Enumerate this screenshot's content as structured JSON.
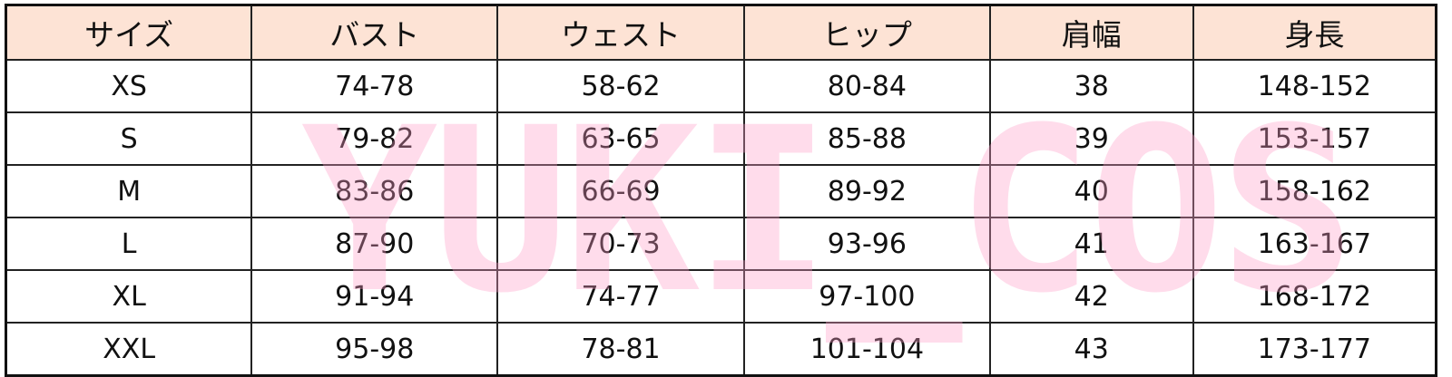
{
  "table": {
    "headers": [
      "サイズ",
      "バスト",
      "ウェスト",
      "ヒップ",
      "肩幅",
      "身長"
    ],
    "rows": [
      [
        "XS",
        "74-78",
        "58-62",
        "80-84",
        "38",
        "148-152"
      ],
      [
        "S",
        "79-82",
        "63-65",
        "85-88",
        "39",
        "153-157"
      ],
      [
        "M",
        "83-86",
        "66-69",
        "89-92",
        "40",
        "158-162"
      ],
      [
        "L",
        "87-90",
        "70-73",
        "93-96",
        "41",
        "163-167"
      ],
      [
        "XL",
        "91-94",
        "74-77",
        "97-100",
        "42",
        "168-172"
      ],
      [
        "XXL",
        "95-98",
        "78-81",
        "101-104",
        "43",
        "173-177"
      ]
    ]
  },
  "watermark": {
    "text": "YUKI_COS",
    "color": "#ff9ec8"
  },
  "colors": {
    "header_bg": "#fde3d5",
    "border": "#111111"
  }
}
